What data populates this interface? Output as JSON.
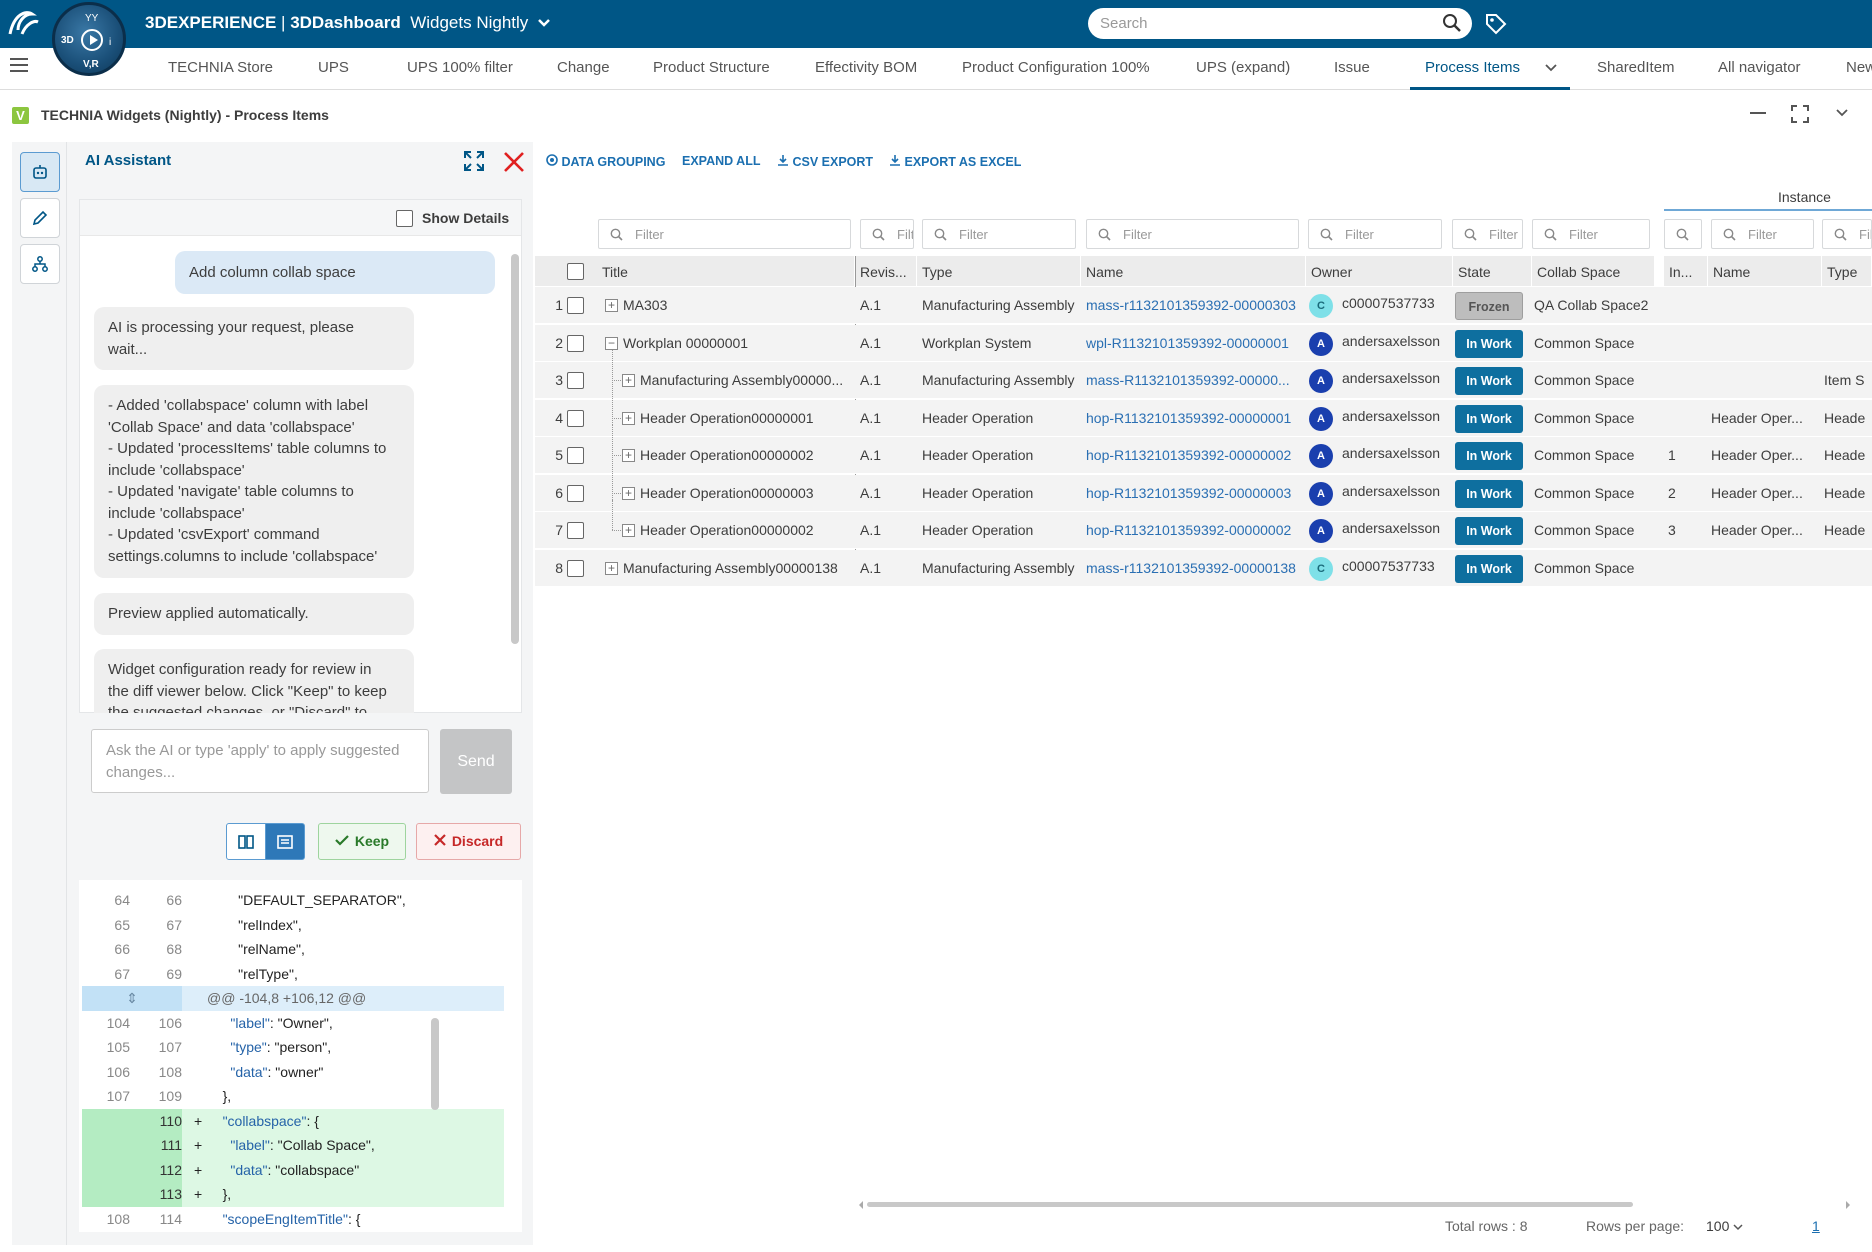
{
  "topbar": {
    "brand": "3DEXPERIENCE",
    "separator": " | ",
    "app": "3DDashboard",
    "dashboard": "Widgets Nightly",
    "search_placeholder": "Search",
    "compass": {
      "top": "YY",
      "left": "3D",
      "right": "i",
      "bottom": "V,R"
    }
  },
  "tabs": [
    {
      "label": "TECHNIA Store"
    },
    {
      "label": "UPS"
    },
    {
      "label": "UPS 100% filter"
    },
    {
      "label": "Change"
    },
    {
      "label": "Product Structure"
    },
    {
      "label": "Effectivity BOM"
    },
    {
      "label": "Product Configuration 100%"
    },
    {
      "label": "UPS (expand)"
    },
    {
      "label": "Issue"
    },
    {
      "label": "Process Items",
      "active": true
    },
    {
      "label": "SharedItem"
    },
    {
      "label": "All navigator"
    },
    {
      "label": "New"
    }
  ],
  "widget": {
    "logo": "V",
    "title": "TECHNIA Widgets (Nightly) - Process Items"
  },
  "ai": {
    "title": "AI Assistant",
    "show_details": "Show Details",
    "messages": [
      {
        "role": "user",
        "text": "Add column collab space"
      },
      {
        "role": "ai",
        "lines": [
          "AI is processing your request, please",
          "wait..."
        ]
      },
      {
        "role": "ai",
        "lines": [
          "- Added 'collabspace' column with label",
          "'Collab Space' and data 'collabspace'",
          "- Updated 'processItems' table columns to",
          "include 'collabspace'",
          "- Updated 'navigate' table columns to",
          "include 'collabspace'",
          "- Updated 'csvExport' command",
          "settings.columns to include 'collabspace'"
        ]
      },
      {
        "role": "ai",
        "lines": [
          "Preview applied automatically."
        ]
      },
      {
        "role": "ai",
        "lines": [
          "Widget configuration ready for review in",
          "the diff viewer below. Click \"Keep\" to keep",
          "the suggested changes, or \"Discard\" to"
        ]
      }
    ],
    "input_placeholder": "Ask the AI or type 'apply' to apply suggested changes...",
    "send_label": "Send",
    "keep_label": "Keep",
    "discard_label": "Discard"
  },
  "diff": {
    "lines": [
      {
        "o": "64",
        "n": "66",
        "s": "",
        "k": "",
        "v": "\"DEFAULT_SEPARATOR\",",
        "indent": "        "
      },
      {
        "o": "65",
        "n": "67",
        "s": "",
        "k": "",
        "v": "\"relIndex\",",
        "indent": "        "
      },
      {
        "o": "66",
        "n": "68",
        "s": "",
        "k": "",
        "v": "\"relName\",",
        "indent": "        "
      },
      {
        "o": "67",
        "n": "69",
        "s": "",
        "k": "",
        "v": "\"relType\",",
        "indent": "        "
      },
      {
        "hunk": "@@ -104,8 +106,12 @@"
      },
      {
        "o": "104",
        "n": "106",
        "s": "",
        "k": "\"label\"",
        "v": ": \"Owner\",",
        "indent": "      "
      },
      {
        "o": "105",
        "n": "107",
        "s": "",
        "k": "\"type\"",
        "v": ": \"person\",",
        "indent": "      "
      },
      {
        "o": "106",
        "n": "108",
        "s": "",
        "k": "\"data\"",
        "v": ": \"owner\"",
        "indent": "      "
      },
      {
        "o": "107",
        "n": "109",
        "s": "",
        "k": "",
        "v": "},",
        "indent": "    "
      },
      {
        "o": "",
        "n": "110",
        "s": "+",
        "k": "\"collabspace\"",
        "v": ": {",
        "indent": "    "
      },
      {
        "o": "",
        "n": "111",
        "s": "+",
        "k": "\"label\"",
        "v": ": \"Collab Space\",",
        "indent": "      "
      },
      {
        "o": "",
        "n": "112",
        "s": "+",
        "k": "\"data\"",
        "v": ": \"collabspace\"",
        "indent": "      "
      },
      {
        "o": "",
        "n": "113",
        "s": "+",
        "k": "",
        "v": "},",
        "indent": "    "
      },
      {
        "o": "108",
        "n": "114",
        "s": "",
        "k": "\"scopeEngItemTitle\"",
        "v": ": {",
        "indent": "    "
      }
    ]
  },
  "toolbar": {
    "data_grouping": "DATA GROUPING",
    "expand_all": "EXPAND ALL",
    "csv_export": "CSV EXPORT",
    "export_excel": "EXPORT AS EXCEL"
  },
  "table": {
    "instance_group": "Instance",
    "filter_placeholder": "Filter",
    "columns": [
      "Title",
      "Revis...",
      "Type",
      "Name",
      "Owner",
      "State",
      "Collab Space",
      "In...",
      "Name",
      "Type"
    ],
    "rows": [
      {
        "n": "1",
        "exp": "+",
        "depth": 0,
        "title": "MA303",
        "rev": "A.1",
        "type": "Manufacturing Assembly",
        "name": "mass-r1132101359392-00000303",
        "av": "C",
        "owner": "c00007537733",
        "state": "Frozen",
        "collab": "QA Collab Space2",
        "inst": "",
        "iname": "",
        "itype": ""
      },
      {
        "n": "2",
        "exp": "−",
        "depth": 0,
        "title": "Workplan 00000001",
        "rev": "A.1",
        "type": "Workplan System",
        "name": "wpl-R1132101359392-00000001",
        "av": "A",
        "owner": "andersaxelsson",
        "state": "In Work",
        "collab": "Common Space",
        "inst": "",
        "iname": "",
        "itype": ""
      },
      {
        "n": "3",
        "exp": "+",
        "depth": 1,
        "title": "Manufacturing Assembly00000...",
        "rev": "A.1",
        "type": "Manufacturing Assembly",
        "name": "mass-R1132101359392-00000...",
        "av": "A",
        "owner": "andersaxelsson",
        "state": "In Work",
        "collab": "Common Space",
        "inst": "",
        "iname": "",
        "itype": "Item S"
      },
      {
        "n": "4",
        "exp": "+",
        "depth": 1,
        "title": "Header Operation00000001",
        "rev": "A.1",
        "type": "Header Operation",
        "name": "hop-R1132101359392-00000001",
        "av": "A",
        "owner": "andersaxelsson",
        "state": "In Work",
        "collab": "Common Space",
        "inst": "",
        "iname": "Header Oper...",
        "itype": "Heade"
      },
      {
        "n": "5",
        "exp": "+",
        "depth": 1,
        "title": "Header Operation00000002",
        "rev": "A.1",
        "type": "Header Operation",
        "name": "hop-R1132101359392-00000002",
        "av": "A",
        "owner": "andersaxelsson",
        "state": "In Work",
        "collab": "Common Space",
        "inst": "1",
        "iname": "Header Oper...",
        "itype": "Heade"
      },
      {
        "n": "6",
        "exp": "+",
        "depth": 1,
        "title": "Header Operation00000003",
        "rev": "A.1",
        "type": "Header Operation",
        "name": "hop-R1132101359392-00000003",
        "av": "A",
        "owner": "andersaxelsson",
        "state": "In Work",
        "collab": "Common Space",
        "inst": "2",
        "iname": "Header Oper...",
        "itype": "Heade"
      },
      {
        "n": "7",
        "exp": "+",
        "depth": 1,
        "title": "Header Operation00000002",
        "rev": "A.1",
        "type": "Header Operation",
        "name": "hop-R1132101359392-00000002",
        "av": "A",
        "owner": "andersaxelsson",
        "state": "In Work",
        "collab": "Common Space",
        "inst": "3",
        "iname": "Header Oper...",
        "itype": "Heade"
      },
      {
        "n": "8",
        "exp": "+",
        "depth": 0,
        "title": "Manufacturing Assembly00000138",
        "rev": "A.1",
        "type": "Manufacturing Assembly",
        "name": "mass-r1132101359392-00000138",
        "av": "C",
        "owner": "c00007537733",
        "state": "In Work",
        "collab": "Common Space",
        "inst": "",
        "iname": "",
        "itype": ""
      }
    ]
  },
  "footer": {
    "total_rows": "Total rows : 8",
    "rows_per_page_label": "Rows per page:",
    "rows_per_page": "100",
    "page": "1"
  }
}
